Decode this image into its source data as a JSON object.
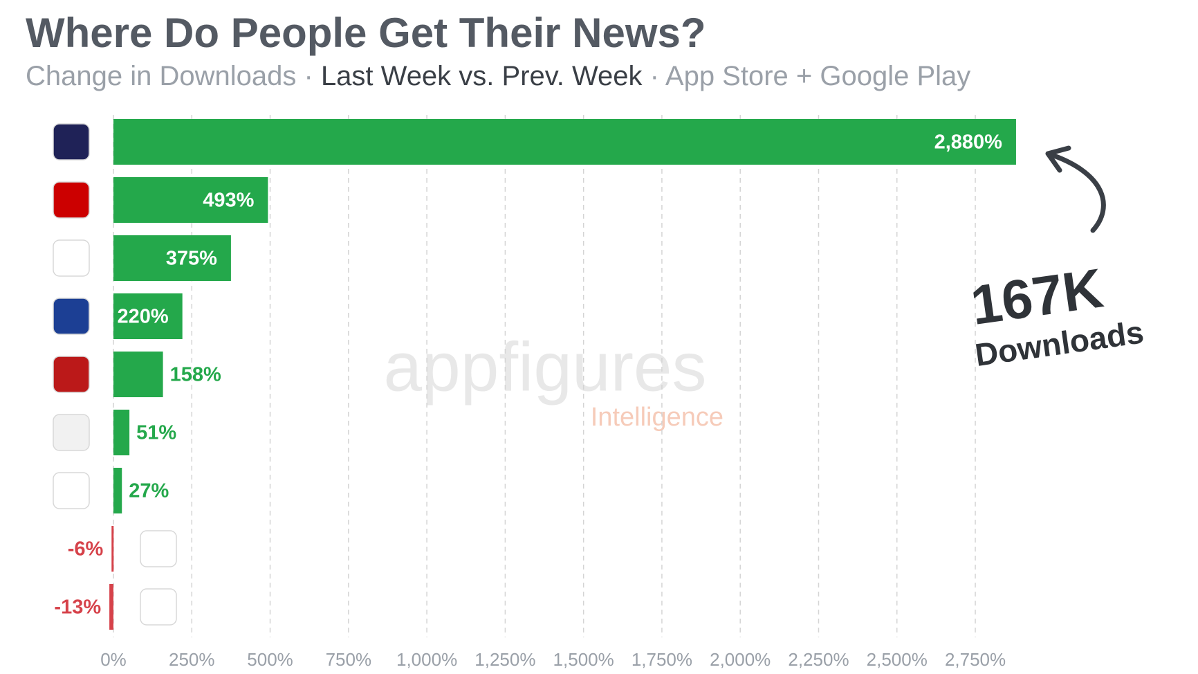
{
  "chart_data": {
    "type": "bar",
    "orientation": "horizontal",
    "title": "Where Do People Get Their News?",
    "subtitle": [
      "Change in Downloads ·",
      "Last Week vs. Prev. Week",
      "· App Store + Google Play"
    ],
    "values": [
      2880,
      493,
      375,
      220,
      158,
      51,
      27,
      -6,
      -13
    ],
    "value_labels": [
      "2,880%",
      "493%",
      "375%",
      "220%",
      "158%",
      "51%",
      "27%",
      "-6%",
      "-13%"
    ],
    "colors": {
      "positive": "#24a84b",
      "negative": "#d6424a"
    },
    "xlim": [
      0,
      2900
    ],
    "xticks": [
      {
        "value": 0,
        "label": "0%"
      },
      {
        "value": 250,
        "label": "250%"
      },
      {
        "value": 500,
        "label": "500%"
      },
      {
        "value": 750,
        "label": "750%"
      },
      {
        "value": 1000,
        "label": "1,000%"
      },
      {
        "value": 1250,
        "label": "1,250%"
      },
      {
        "value": 1500,
        "label": "1,500%"
      },
      {
        "value": 1750,
        "label": "1,750%"
      },
      {
        "value": 2000,
        "label": "2,000%"
      },
      {
        "value": 2250,
        "label": "2,250%"
      },
      {
        "value": 2500,
        "label": "2,500%"
      },
      {
        "value": 2750,
        "label": "2,750%"
      }
    ],
    "grid": true,
    "annotations": {
      "big_number": "167K",
      "big_label": "Downloads"
    },
    "watermark": {
      "brand": "appfigures",
      "product": "Intelligence"
    }
  }
}
